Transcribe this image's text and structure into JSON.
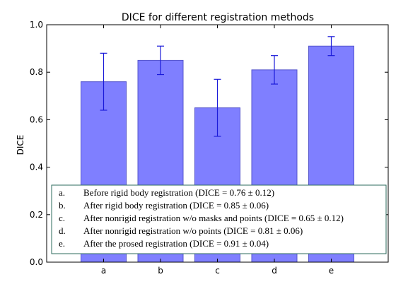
{
  "chart_data": {
    "type": "bar",
    "title": "DICE for different registration methods",
    "xlabel": "",
    "ylabel": "DICE",
    "categories": [
      "a",
      "b",
      "c",
      "d",
      "e"
    ],
    "values": [
      0.76,
      0.85,
      0.65,
      0.81,
      0.91
    ],
    "errors": [
      0.12,
      0.06,
      0.12,
      0.06,
      0.04
    ],
    "ylim": [
      0.0,
      1.0
    ],
    "yticks": [
      "0.0",
      "0.2",
      "0.4",
      "0.6",
      "0.8",
      "1.0"
    ],
    "grid": false,
    "legend_placement": "bottom",
    "bar_color": "#7f7fff",
    "bar_edge_color": "#5555cc",
    "error_color": "#1a1ad9",
    "annotation": [
      {
        "label": "a.",
        "text": "Before rigid body registration (DICE = 0.76 ± 0.12)"
      },
      {
        "label": "b.",
        "text": "After rigid body registration (DICE = 0.85 ± 0.06)"
      },
      {
        "label": "c.",
        "text": "After nonrigid registration w/o masks and points (DICE = 0.65 ± 0.12)"
      },
      {
        "label": "d.",
        "text": "After nonrigid registration w/o points (DICE = 0.81 ± 0.06)"
      },
      {
        "label": "e.",
        "text": "After the prosed registration (DICE = 0.91 ± 0.04)"
      }
    ],
    "annotation_border_color": "#2e6b5e"
  }
}
